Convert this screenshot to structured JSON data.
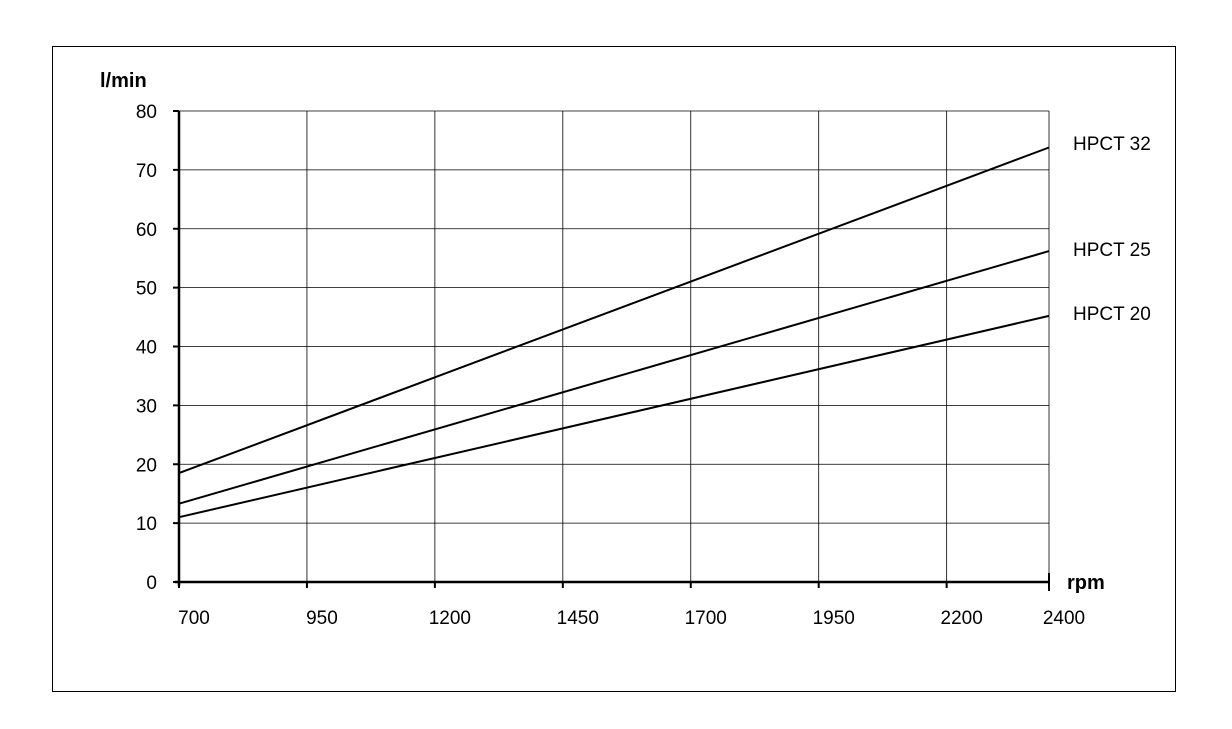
{
  "chart_data": {
    "type": "line",
    "x_ticks": [
      700,
      950,
      1200,
      1450,
      1700,
      1950,
      2200,
      2400
    ],
    "y_ticks": [
      0,
      10,
      20,
      30,
      40,
      50,
      60,
      70,
      80
    ],
    "xlim": [
      700,
      2400
    ],
    "ylim": [
      0,
      80
    ],
    "xlabel": "rpm",
    "ylabel": "l/min",
    "grid": true,
    "series": [
      {
        "name": "HPCT 32",
        "x": [
          700,
          2400
        ],
        "y": [
          18.5,
          73.8
        ]
      },
      {
        "name": "HPCT 25",
        "x": [
          700,
          2400
        ],
        "y": [
          13.3,
          56.2
        ]
      },
      {
        "name": "HPCT 20",
        "x": [
          700,
          2400
        ],
        "y": [
          11.0,
          45.2
        ]
      }
    ],
    "colors": {
      "line": "#000000",
      "grid": "#000000"
    }
  }
}
